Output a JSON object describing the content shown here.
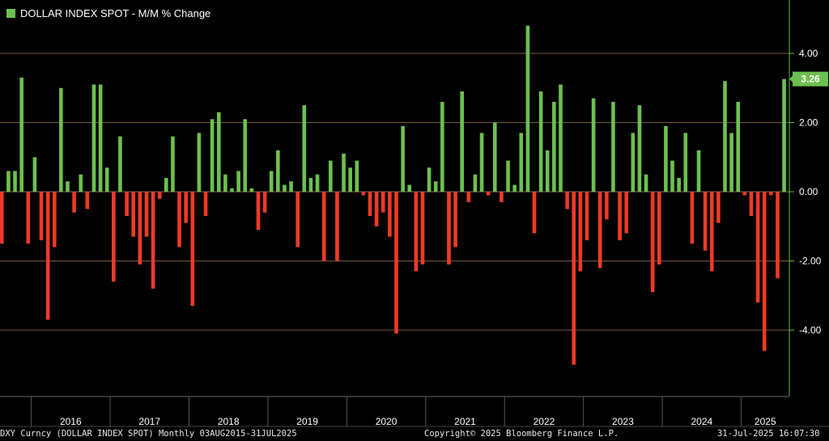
{
  "colors": {
    "positive": "#6dc04f",
    "negative": "#ee3a26",
    "grid": "#7a5a3c",
    "axis": "#58c23a",
    "current_badge": "#6dc04f"
  },
  "legend": {
    "label": "DOLLAR INDEX SPOT - M/M % Change"
  },
  "current_value_label": "3.26",
  "footer": {
    "left": "DXY Curncy (DOLLAR INDEX SPOT) Monthly 03AUG2015-31JUL2025",
    "center": "Copyright© 2025 Bloomberg Finance L.P.",
    "right": "31-Jul-2025 16:07:30"
  },
  "chart_data": {
    "type": "bar",
    "title": "DOLLAR INDEX SPOT - M/M % Change",
    "xlabel": "",
    "ylabel": "",
    "ylim": [
      -5.8,
      5.6
    ],
    "yticks": [
      -4,
      -2,
      0,
      2,
      4
    ],
    "ytick_labels": [
      "-4.00",
      "-2.00",
      "0.00",
      "2.00",
      "4.00"
    ],
    "grid": true,
    "x_tick_labels": [
      "2016",
      "2017",
      "2018",
      "2019",
      "2020",
      "2021",
      "2022",
      "2023",
      "2024",
      "2025"
    ],
    "start_month": "2015-08",
    "end_month": "2025-07",
    "last_value": 3.26,
    "series": [
      {
        "values": [
          -1.5,
          0.6,
          0.6,
          3.3,
          -1.5,
          1.0,
          -1.4,
          -3.7,
          -1.6,
          3.0,
          0.3,
          -0.6,
          0.5,
          -0.5,
          3.1,
          3.1,
          0.7,
          -2.6,
          1.6,
          -0.7,
          -1.3,
          -2.1,
          -1.3,
          -2.8,
          -0.2,
          0.4,
          1.6,
          -1.6,
          -0.9,
          -3.3,
          1.7,
          -0.7,
          2.1,
          2.3,
          0.5,
          0.1,
          0.6,
          2.1,
          0.1,
          -1.1,
          -0.6,
          0.6,
          1.2,
          0.2,
          0.3,
          -1.6,
          2.5,
          0.4,
          0.5,
          -2.0,
          0.9,
          -2.0,
          1.1,
          0.7,
          0.9,
          -0.1,
          -0.7,
          -1.0,
          -0.6,
          -1.3,
          -4.1,
          1.9,
          0.2,
          -2.3,
          -2.1,
          0.7,
          0.3,
          2.6,
          -2.1,
          -1.6,
          2.9,
          -0.3,
          0.5,
          1.7,
          -0.1,
          2.0,
          -0.3,
          0.9,
          0.2,
          1.7,
          4.8,
          -1.2,
          2.9,
          1.2,
          2.6,
          3.1,
          -0.5,
          -5.0,
          -2.3,
          -1.4,
          2.7,
          -2.2,
          -0.8,
          2.6,
          -1.4,
          -1.2,
          1.7,
          2.5,
          0.5,
          -2.9,
          -2.1,
          1.9,
          0.9,
          0.4,
          1.7,
          -1.5,
          1.2,
          -1.7,
          -2.3,
          -0.9,
          3.2,
          1.7,
          2.6,
          -0.1,
          -0.7,
          -3.2,
          -4.6,
          -0.1,
          -2.5,
          3.26
        ]
      }
    ]
  }
}
